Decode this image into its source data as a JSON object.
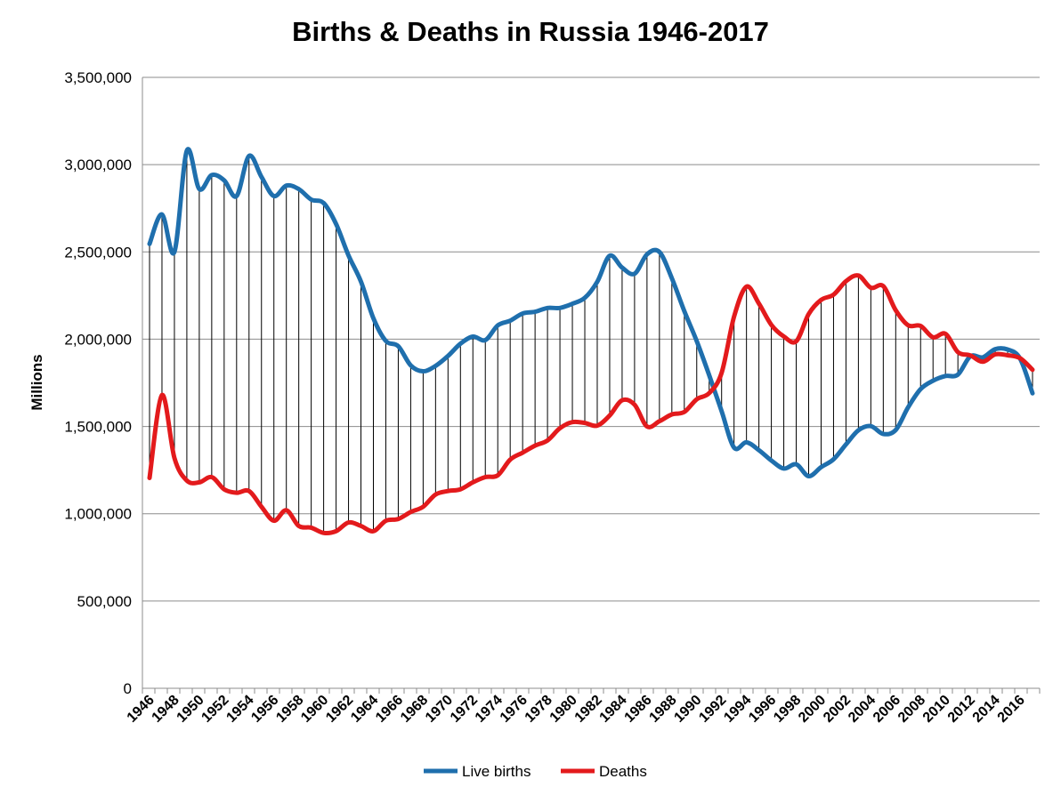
{
  "chart_data": {
    "type": "line",
    "title": "Births & Deaths in Russia 1946-2017",
    "xlabel": "",
    "ylabel": "Millions",
    "ylim": [
      0,
      3500000
    ],
    "yticks": [
      0,
      500000,
      1000000,
      1500000,
      2000000,
      2500000,
      3000000,
      3500000
    ],
    "ytick_labels": [
      "0",
      "500,000",
      "1,000,000",
      "1,500,000",
      "2,000,000",
      "2,500,000",
      "3,000,000",
      "3,500,000"
    ],
    "xtick_labels": [
      "1946",
      "1948",
      "1950",
      "1952",
      "1954",
      "1956",
      "1958",
      "1960",
      "1962",
      "1964",
      "1966",
      "1968",
      "1970",
      "1972",
      "1974",
      "1976",
      "1978",
      "1980",
      "1982",
      "1984",
      "1986",
      "1988",
      "1990",
      "1992",
      "1994",
      "1996",
      "1998",
      "2000",
      "2002",
      "2004",
      "2006",
      "2008",
      "2010",
      "2012",
      "2014",
      "2016"
    ],
    "grid": true,
    "legend": "bottom",
    "drop_lines": true,
    "x": [
      1946,
      1947,
      1948,
      1949,
      1950,
      1951,
      1952,
      1953,
      1954,
      1955,
      1956,
      1957,
      1958,
      1959,
      1960,
      1961,
      1962,
      1963,
      1964,
      1965,
      1966,
      1967,
      1968,
      1969,
      1970,
      1971,
      1972,
      1973,
      1974,
      1975,
      1976,
      1977,
      1978,
      1979,
      1980,
      1981,
      1982,
      1983,
      1984,
      1985,
      1986,
      1987,
      1988,
      1989,
      1990,
      1991,
      1992,
      1993,
      1994,
      1995,
      1996,
      1997,
      1998,
      1999,
      2000,
      2001,
      2002,
      2003,
      2004,
      2005,
      2006,
      2007,
      2008,
      2009,
      2010,
      2011,
      2012,
      2013,
      2014,
      2015,
      2016,
      2017
    ],
    "series": [
      {
        "name": "Live births",
        "color": "#1f6fad",
        "values": [
          2546000,
          2715000,
          2500000,
          3080000,
          2860000,
          2940000,
          2910000,
          2820000,
          3050000,
          2930000,
          2820000,
          2880000,
          2860000,
          2800000,
          2780000,
          2660000,
          2480000,
          2330000,
          2120000,
          1990000,
          1960000,
          1850000,
          1816000,
          1847000,
          1904000,
          1974000,
          2015000,
          1995000,
          2079000,
          2106000,
          2147000,
          2157000,
          2179000,
          2179000,
          2203000,
          2237000,
          2329000,
          2478000,
          2410000,
          2375000,
          2486000,
          2500000,
          2349000,
          2161000,
          1989000,
          1794000,
          1588000,
          1379000,
          1409000,
          1364000,
          1305000,
          1259000,
          1283000,
          1215000,
          1267000,
          1312000,
          1397000,
          1478000,
          1502000,
          1457000,
          1480000,
          1610000,
          1714000,
          1762000,
          1789000,
          1797000,
          1902000,
          1896000,
          1943000,
          1941000,
          1889000,
          1690000
        ]
      },
      {
        "name": "Deaths",
        "color": "#e31a1c",
        "values": [
          1205000,
          1680000,
          1320000,
          1190000,
          1180000,
          1210000,
          1140000,
          1120000,
          1130000,
          1040000,
          960000,
          1020000,
          930000,
          920000,
          890000,
          900000,
          950000,
          930000,
          900000,
          960000,
          970000,
          1010000,
          1040000,
          1110000,
          1130000,
          1140000,
          1180000,
          1210000,
          1220000,
          1310000,
          1350000,
          1390000,
          1420000,
          1490000,
          1525000,
          1520000,
          1505000,
          1563000,
          1650000,
          1625000,
          1500000,
          1530000,
          1569000,
          1583000,
          1656000,
          1691000,
          1807000,
          2129000,
          2301000,
          2204000,
          2082000,
          2016000,
          1988000,
          2144000,
          2225000,
          2255000,
          2332000,
          2365000,
          2295000,
          2304000,
          2166000,
          2080000,
          2076000,
          2011000,
          2031000,
          1926000,
          1907000,
          1871000,
          1913000,
          1908000,
          1891000,
          1825000
        ]
      }
    ]
  }
}
